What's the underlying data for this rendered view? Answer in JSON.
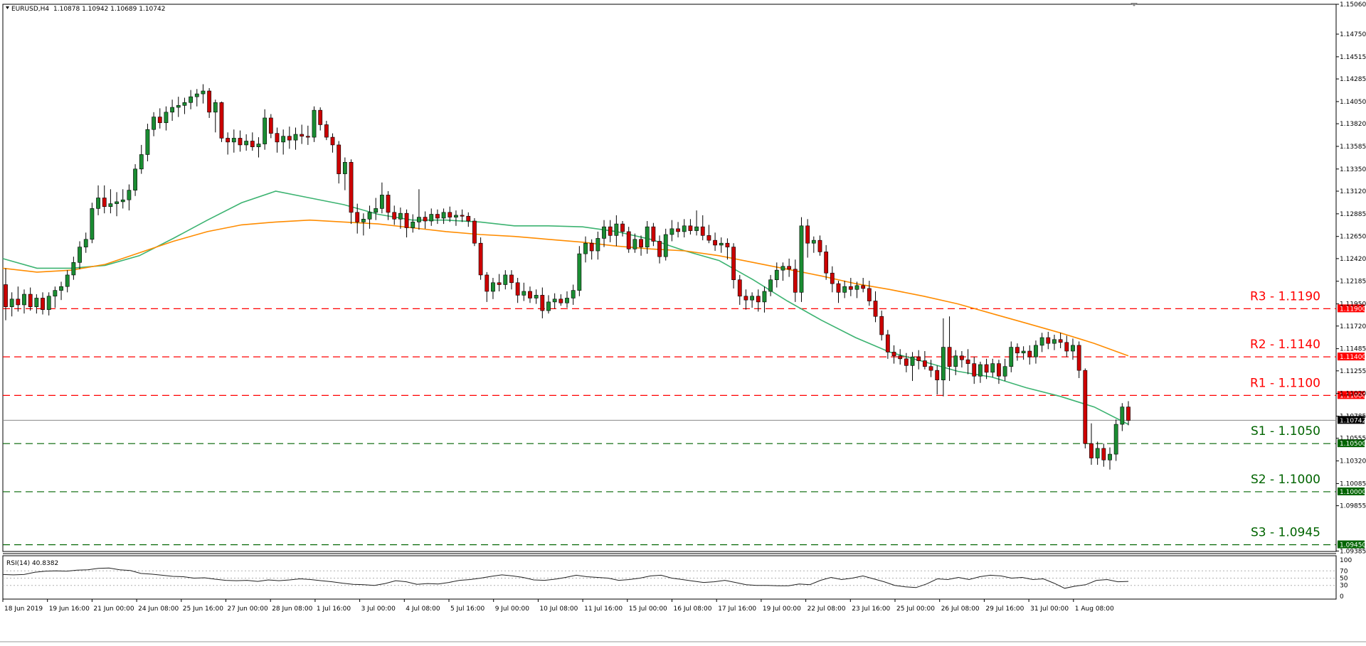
{
  "chart_data": {
    "type": "candlestick",
    "symbol_label": "EURUSD,H4",
    "ohlc_label": "1.10878 1.10942 1.10689 1.10742",
    "price_axis": {
      "ylim": [
        1.0938,
        1.1506
      ],
      "ticks": [
        "1.15060",
        "1.14750",
        "1.14515",
        "1.14285",
        "1.14050",
        "1.13820",
        "1.13585",
        "1.13350",
        "1.13120",
        "1.12885",
        "1.12650",
        "1.12420",
        "1.12185",
        "1.11950",
        "1.11720",
        "1.11485",
        "1.11255",
        "1.11020",
        "1.10785",
        "1.10555",
        "1.10320",
        "1.10085",
        "1.09855",
        "1.09385"
      ]
    },
    "time_axis": {
      "labels": [
        "18 Jun 2019",
        "19 Jun 16:00",
        "21 Jun 00:00",
        "24 Jun 08:00",
        "25 Jun 16:00",
        "27 Jun 00:00",
        "28 Jun 08:00",
        "1 Jul 16:00",
        "3 Jul 00:00",
        "4 Jul 08:00",
        "5 Jul 16:00",
        "9 Jul 00:00",
        "10 Jul 08:00",
        "11 Jul 16:00",
        "15 Jul 00:00",
        "16 Jul 08:00",
        "17 Jul 16:00",
        "19 Jul 00:00",
        "22 Jul 08:00",
        "23 Jul 16:00",
        "25 Jul 00:00",
        "26 Jul 08:00",
        "29 Jul 16:00",
        "31 Jul 00:00",
        "1 Aug 08:00"
      ]
    },
    "candles": [
      [
        1.1215,
        1.1232,
        1.1178,
        1.1192
      ],
      [
        1.1192,
        1.1207,
        1.1182,
        1.12
      ],
      [
        1.12,
        1.1213,
        1.1187,
        1.1194
      ],
      [
        1.1194,
        1.121,
        1.1185,
        1.1205
      ],
      [
        1.1205,
        1.1212,
        1.1188,
        1.1192
      ],
      [
        1.1192,
        1.1205,
        1.1185,
        1.1201
      ],
      [
        1.1201,
        1.1207,
        1.1184,
        1.1189
      ],
      [
        1.1189,
        1.1207,
        1.1183,
        1.1203
      ],
      [
        1.1203,
        1.1213,
        1.1191,
        1.1209
      ],
      [
        1.1209,
        1.1218,
        1.1199,
        1.1213
      ],
      [
        1.1213,
        1.123,
        1.1207,
        1.1225
      ],
      [
        1.1225,
        1.1244,
        1.122,
        1.1238
      ],
      [
        1.1238,
        1.126,
        1.1231,
        1.1254
      ],
      [
        1.1254,
        1.1269,
        1.1248,
        1.1262
      ],
      [
        1.1262,
        1.13,
        1.1258,
        1.1294
      ],
      [
        1.1294,
        1.1318,
        1.1287,
        1.1305
      ],
      [
        1.1305,
        1.1318,
        1.1289,
        1.1296
      ],
      [
        1.1296,
        1.1314,
        1.1289,
        1.1299
      ],
      [
        1.1299,
        1.1311,
        1.1286,
        1.1301
      ],
      [
        1.1301,
        1.1314,
        1.1294,
        1.1303
      ],
      [
        1.1303,
        1.1319,
        1.1292,
        1.1313
      ],
      [
        1.1313,
        1.134,
        1.1307,
        1.1335
      ],
      [
        1.1335,
        1.136,
        1.133,
        1.135
      ],
      [
        1.135,
        1.1382,
        1.1343,
        1.1376
      ],
      [
        1.1376,
        1.1394,
        1.1369,
        1.1389
      ],
      [
        1.1389,
        1.1398,
        1.1377,
        1.1383
      ],
      [
        1.1383,
        1.14,
        1.1375,
        1.1394
      ],
      [
        1.1394,
        1.1407,
        1.1385,
        1.1399
      ],
      [
        1.1399,
        1.141,
        1.1389,
        1.1401
      ],
      [
        1.1401,
        1.1409,
        1.1392,
        1.1404
      ],
      [
        1.1404,
        1.1417,
        1.1397,
        1.141
      ],
      [
        1.141,
        1.1418,
        1.14,
        1.1413
      ],
      [
        1.1413,
        1.1423,
        1.1403,
        1.1416
      ],
      [
        1.1416,
        1.1419,
        1.1388,
        1.1394
      ],
      [
        1.1394,
        1.1407,
        1.1373,
        1.1404
      ],
      [
        1.1404,
        1.1405,
        1.1363,
        1.1367
      ],
      [
        1.1367,
        1.1373,
        1.135,
        1.1363
      ],
      [
        1.1363,
        1.1376,
        1.1352,
        1.1367
      ],
      [
        1.1367,
        1.1375,
        1.1353,
        1.136
      ],
      [
        1.136,
        1.1371,
        1.1354,
        1.1364
      ],
      [
        1.1364,
        1.1373,
        1.1354,
        1.1358
      ],
      [
        1.1358,
        1.1368,
        1.1347,
        1.1361
      ],
      [
        1.1361,
        1.1397,
        1.1355,
        1.1388
      ],
      [
        1.1388,
        1.1392,
        1.1367,
        1.1372
      ],
      [
        1.1372,
        1.1378,
        1.1352,
        1.1363
      ],
      [
        1.1363,
        1.1376,
        1.135,
        1.1369
      ],
      [
        1.1369,
        1.1379,
        1.1356,
        1.1365
      ],
      [
        1.1365,
        1.1378,
        1.1355,
        1.1371
      ],
      [
        1.1371,
        1.1381,
        1.1361,
        1.1369
      ],
      [
        1.1369,
        1.138,
        1.136,
        1.1368
      ],
      [
        1.1368,
        1.14,
        1.1363,
        1.1396
      ],
      [
        1.1396,
        1.1399,
        1.1375,
        1.1381
      ],
      [
        1.1381,
        1.1385,
        1.1365,
        1.1368
      ],
      [
        1.1368,
        1.1372,
        1.1352,
        1.136
      ],
      [
        1.136,
        1.1364,
        1.132,
        1.133
      ],
      [
        1.133,
        1.1347,
        1.1313,
        1.1342
      ],
      [
        1.1342,
        1.1345,
        1.1278,
        1.129
      ],
      [
        1.129,
        1.1299,
        1.1268,
        1.128
      ],
      [
        1.128,
        1.1289,
        1.1266,
        1.1283
      ],
      [
        1.1283,
        1.1297,
        1.1273,
        1.129
      ],
      [
        1.129,
        1.1305,
        1.1282,
        1.1294
      ],
      [
        1.1294,
        1.1321,
        1.1289,
        1.1308
      ],
      [
        1.1308,
        1.1312,
        1.1282,
        1.129
      ],
      [
        1.129,
        1.1297,
        1.1277,
        1.1283
      ],
      [
        1.1283,
        1.1295,
        1.1273,
        1.1289
      ],
      [
        1.1289,
        1.1293,
        1.1264,
        1.1274
      ],
      [
        1.1274,
        1.1288,
        1.1269,
        1.128
      ],
      [
        1.128,
        1.1314,
        1.1272,
        1.1285
      ],
      [
        1.1285,
        1.1291,
        1.1273,
        1.1281
      ],
      [
        1.1281,
        1.1294,
        1.1276,
        1.1288
      ],
      [
        1.1288,
        1.1293,
        1.1278,
        1.1284
      ],
      [
        1.1284,
        1.1294,
        1.1278,
        1.129
      ],
      [
        1.129,
        1.1296,
        1.128,
        1.1285
      ],
      [
        1.1285,
        1.1292,
        1.1276,
        1.1287
      ],
      [
        1.1287,
        1.1293,
        1.128,
        1.1286
      ],
      [
        1.1286,
        1.129,
        1.1275,
        1.1281
      ],
      [
        1.1281,
        1.1284,
        1.1255,
        1.1258
      ],
      [
        1.1258,
        1.1264,
        1.122,
        1.1225
      ],
      [
        1.1225,
        1.1228,
        1.1197,
        1.1208
      ],
      [
        1.1208,
        1.1222,
        1.12,
        1.1217
      ],
      [
        1.1217,
        1.1226,
        1.1208,
        1.1215
      ],
      [
        1.1215,
        1.123,
        1.121,
        1.1225
      ],
      [
        1.1225,
        1.123,
        1.121,
        1.1217
      ],
      [
        1.1217,
        1.1222,
        1.1196,
        1.1204
      ],
      [
        1.1204,
        1.1217,
        1.1198,
        1.1208
      ],
      [
        1.1208,
        1.1213,
        1.1196,
        1.1201
      ],
      [
        1.1201,
        1.121,
        1.1195,
        1.1204
      ],
      [
        1.1204,
        1.1212,
        1.118,
        1.1188
      ],
      [
        1.1188,
        1.1204,
        1.1185,
        1.1197
      ],
      [
        1.1197,
        1.1206,
        1.119,
        1.12
      ],
      [
        1.12,
        1.1205,
        1.1193,
        1.1196
      ],
      [
        1.1196,
        1.1208,
        1.1191,
        1.1201
      ],
      [
        1.1201,
        1.1215,
        1.1194,
        1.1209
      ],
      [
        1.1209,
        1.1255,
        1.1203,
        1.1247
      ],
      [
        1.1247,
        1.1265,
        1.1238,
        1.1258
      ],
      [
        1.1258,
        1.1262,
        1.1241,
        1.125
      ],
      [
        1.125,
        1.127,
        1.1241,
        1.1263
      ],
      [
        1.1263,
        1.1282,
        1.1254,
        1.1275
      ],
      [
        1.1275,
        1.1282,
        1.1259,
        1.1266
      ],
      [
        1.1266,
        1.1287,
        1.1255,
        1.1278
      ],
      [
        1.1278,
        1.1281,
        1.1265,
        1.127
      ],
      [
        1.127,
        1.1275,
        1.1248,
        1.1252
      ],
      [
        1.1252,
        1.1268,
        1.1248,
        1.1262
      ],
      [
        1.1262,
        1.1266,
        1.1245,
        1.1254
      ],
      [
        1.1254,
        1.1281,
        1.1247,
        1.1275
      ],
      [
        1.1275,
        1.1279,
        1.1255,
        1.126
      ],
      [
        1.126,
        1.1266,
        1.1237,
        1.1244
      ],
      [
        1.1244,
        1.1273,
        1.124,
        1.1267
      ],
      [
        1.1267,
        1.1282,
        1.126,
        1.1273
      ],
      [
        1.1273,
        1.128,
        1.1264,
        1.127
      ],
      [
        1.127,
        1.1283,
        1.1264,
        1.1276
      ],
      [
        1.1276,
        1.1283,
        1.1267,
        1.1271
      ],
      [
        1.1271,
        1.1292,
        1.1266,
        1.1275
      ],
      [
        1.1275,
        1.1287,
        1.1261,
        1.1266
      ],
      [
        1.1266,
        1.1277,
        1.1258,
        1.1261
      ],
      [
        1.1261,
        1.1269,
        1.125,
        1.1256
      ],
      [
        1.1256,
        1.1264,
        1.1248,
        1.1258
      ],
      [
        1.1258,
        1.1263,
        1.1241,
        1.1254
      ],
      [
        1.1254,
        1.1258,
        1.1211,
        1.122
      ],
      [
        1.122,
        1.1225,
        1.1194,
        1.1203
      ],
      [
        1.1203,
        1.121,
        1.1189,
        1.1199
      ],
      [
        1.1199,
        1.1207,
        1.1191,
        1.1203
      ],
      [
        1.1203,
        1.121,
        1.1187,
        1.1197
      ],
      [
        1.1197,
        1.1213,
        1.1186,
        1.1208
      ],
      [
        1.1208,
        1.1225,
        1.1203,
        1.122
      ],
      [
        1.122,
        1.1238,
        1.1212,
        1.123
      ],
      [
        1.123,
        1.1238,
        1.1219,
        1.1234
      ],
      [
        1.1234,
        1.1242,
        1.1223,
        1.1231
      ],
      [
        1.1231,
        1.1241,
        1.1197,
        1.1207
      ],
      [
        1.1207,
        1.1285,
        1.1197,
        1.1276
      ],
      [
        1.1276,
        1.1283,
        1.1243,
        1.1258
      ],
      [
        1.1258,
        1.1265,
        1.1248,
        1.1261
      ],
      [
        1.1261,
        1.1266,
        1.1245,
        1.1249
      ],
      [
        1.1249,
        1.1256,
        1.122,
        1.1227
      ],
      [
        1.1227,
        1.1234,
        1.1207,
        1.1216
      ],
      [
        1.1216,
        1.1219,
        1.1196,
        1.1207
      ],
      [
        1.1207,
        1.1219,
        1.1201,
        1.1213
      ],
      [
        1.1213,
        1.1222,
        1.1203,
        1.121
      ],
      [
        1.121,
        1.1218,
        1.1201,
        1.1214
      ],
      [
        1.1214,
        1.1222,
        1.1207,
        1.1211
      ],
      [
        1.1211,
        1.1219,
        1.1193,
        1.1198
      ],
      [
        1.1198,
        1.1208,
        1.1176,
        1.1182
      ],
      [
        1.1182,
        1.1188,
        1.1157,
        1.1163
      ],
      [
        1.1163,
        1.1168,
        1.1138,
        1.1145
      ],
      [
        1.1145,
        1.1152,
        1.1133,
        1.1141
      ],
      [
        1.1141,
        1.1148,
        1.1132,
        1.1138
      ],
      [
        1.1138,
        1.1144,
        1.1124,
        1.1131
      ],
      [
        1.1131,
        1.1145,
        1.1115,
        1.114
      ],
      [
        1.114,
        1.1147,
        1.1127,
        1.1136
      ],
      [
        1.1136,
        1.1146,
        1.1127,
        1.113
      ],
      [
        1.113,
        1.1137,
        1.1119,
        1.1126
      ],
      [
        1.1126,
        1.1131,
        1.1101,
        1.1116
      ],
      [
        1.1116,
        1.118,
        1.1099,
        1.115
      ],
      [
        1.115,
        1.1182,
        1.1115,
        1.113
      ],
      [
        1.113,
        1.1147,
        1.1121,
        1.1141
      ],
      [
        1.1141,
        1.1146,
        1.1129,
        1.1137
      ],
      [
        1.1137,
        1.1148,
        1.1122,
        1.1133
      ],
      [
        1.1133,
        1.114,
        1.1112,
        1.112
      ],
      [
        1.112,
        1.1135,
        1.1113,
        1.1132
      ],
      [
        1.1132,
        1.1138,
        1.1117,
        1.1124
      ],
      [
        1.1124,
        1.1138,
        1.1119,
        1.1133
      ],
      [
        1.1133,
        1.1137,
        1.1112,
        1.112
      ],
      [
        1.112,
        1.1138,
        1.1115,
        1.113
      ],
      [
        1.113,
        1.1156,
        1.1124,
        1.115
      ],
      [
        1.115,
        1.1154,
        1.1136,
        1.1144
      ],
      [
        1.1144,
        1.1151,
        1.1137,
        1.1146
      ],
      [
        1.1146,
        1.1152,
        1.1132,
        1.114
      ],
      [
        1.114,
        1.1157,
        1.1133,
        1.1152
      ],
      [
        1.1152,
        1.1165,
        1.1145,
        1.116
      ],
      [
        1.116,
        1.1166,
        1.1148,
        1.1154
      ],
      [
        1.1154,
        1.1163,
        1.1147,
        1.1158
      ],
      [
        1.1158,
        1.1165,
        1.1149,
        1.1155
      ],
      [
        1.1155,
        1.1162,
        1.114,
        1.1146
      ],
      [
        1.1146,
        1.1159,
        1.1137,
        1.1152
      ],
      [
        1.1152,
        1.1156,
        1.1118,
        1.1126
      ],
      [
        1.1126,
        1.1128,
        1.1045,
        1.105
      ],
      [
        1.105,
        1.1071,
        1.1028,
        1.1035
      ],
      [
        1.1035,
        1.1052,
        1.1028,
        1.1045
      ],
      [
        1.1045,
        1.105,
        1.1026,
        1.1033
      ],
      [
        1.1033,
        1.1046,
        1.1023,
        1.1039
      ],
      [
        1.1039,
        1.1075,
        1.1032,
        1.107
      ],
      [
        1.107,
        1.1092,
        1.1063,
        1.1088
      ],
      [
        1.1088,
        1.1094,
        1.1069,
        1.1074
      ]
    ],
    "series": [
      {
        "values": [
          1.1242,
          1.1232,
          1.1232,
          1.1235,
          1.1245,
          1.1263,
          1.1282,
          1.13,
          1.1312,
          1.1305,
          1.1298,
          1.1288,
          1.1282,
          1.1282,
          1.128,
          1.1276,
          1.1276,
          1.1275,
          1.127,
          1.1262,
          1.125,
          1.124,
          1.122,
          1.1198,
          1.1178,
          1.116,
          1.1145,
          1.1135,
          1.1125,
          1.1119,
          1.1108,
          1.1099,
          1.1088,
          1.107
        ]
      },
      {
        "values": [
          1.1232,
          1.1228,
          1.123,
          1.1236,
          1.1248,
          1.126,
          1.127,
          1.1277,
          1.128,
          1.1282,
          1.128,
          1.1278,
          1.1274,
          1.127,
          1.1267,
          1.1265,
          1.1262,
          1.1259,
          1.1255,
          1.1252,
          1.125,
          1.1245,
          1.1238,
          1.1231,
          1.1224,
          1.1216,
          1.121,
          1.1203,
          1.1195,
          1.1185,
          1.1175,
          1.1165,
          1.1154,
          1.1141
        ]
      }
    ],
    "levels": [
      {
        "name": "R3 - 1.1190",
        "tag": "1.11900",
        "price": 1.119,
        "color": "#ff0000"
      },
      {
        "name": "R2 - 1.1140",
        "tag": "1.11400",
        "price": 1.114,
        "color": "#ff0000"
      },
      {
        "name": "R1 - 1.1100",
        "tag": "1.11000",
        "price": 1.11,
        "color": "#ff0000"
      },
      {
        "name": "S1 - 1.1050",
        "tag": "1.10500",
        "price": 1.105,
        "color": "#006400"
      },
      {
        "name": "S2 - 1.1000",
        "tag": "1.10000",
        "price": 1.1,
        "color": "#006400"
      },
      {
        "name": "S3 - 1.0945",
        "tag": "1.09450",
        "price": 1.0945,
        "color": "#006400"
      }
    ],
    "current_price": {
      "price": 1.10742,
      "tag": "1.10742"
    },
    "rsi": {
      "label": "RSI(14) 40.8382",
      "ylim": [
        0,
        100
      ],
      "ticks": [
        "100",
        "70",
        "50",
        "30",
        "0"
      ],
      "values": [
        60,
        59,
        60,
        66,
        69,
        70,
        69,
        72,
        73,
        77,
        78,
        73,
        71,
        63,
        61,
        58,
        55,
        54,
        50,
        51,
        47,
        44,
        43,
        44,
        41,
        45,
        43,
        45,
        48,
        46,
        43,
        40,
        36,
        33,
        32,
        30,
        35,
        43,
        40,
        33,
        35,
        34,
        38,
        44,
        46,
        50,
        55,
        59,
        56,
        52,
        45,
        44,
        47,
        52,
        58,
        54,
        52,
        50,
        44,
        46,
        50,
        56,
        58,
        50,
        46,
        42,
        38,
        40,
        44,
        38,
        32,
        30,
        30,
        29,
        29,
        34,
        32,
        44,
        52,
        46,
        50,
        56,
        48,
        40,
        30,
        26,
        24,
        34,
        48,
        46,
        52,
        46,
        54,
        58,
        56,
        50,
        52,
        46,
        48,
        36,
        22,
        28,
        32,
        44,
        46,
        40,
        41
      ]
    },
    "colors": {
      "bull": "#1a8c32",
      "bear": "#cc0000",
      "ma_green": "#3cb371",
      "ma_orange": "#ff8c00"
    }
  }
}
